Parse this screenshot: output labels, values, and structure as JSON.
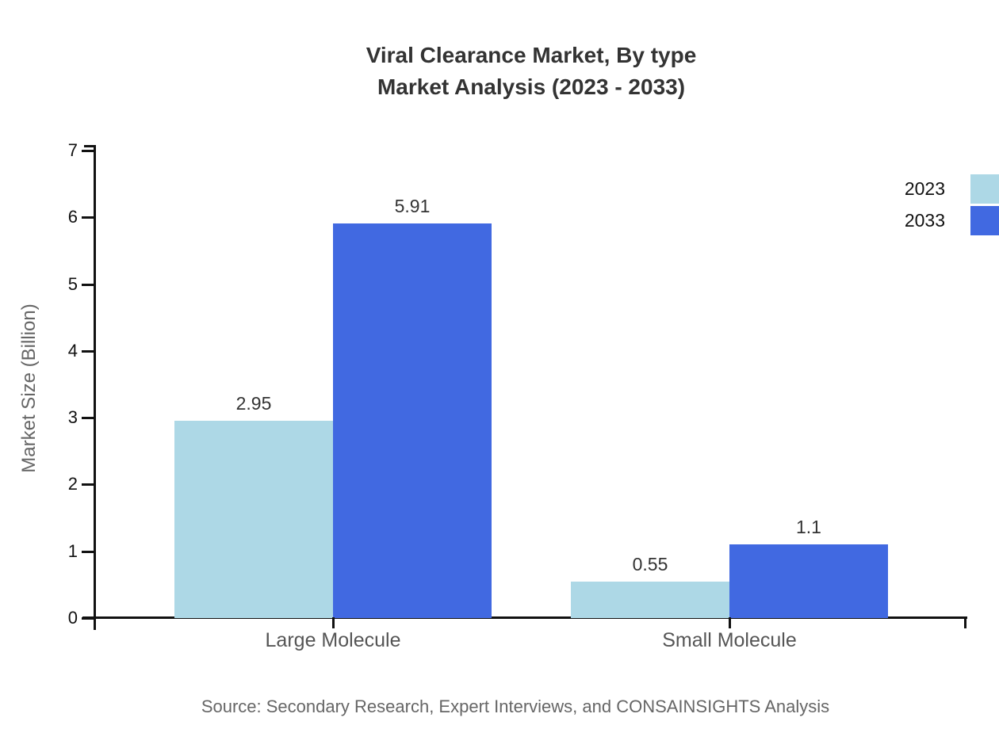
{
  "title": {
    "line1": "Viral Clearance Market, By type",
    "line2": "Market Analysis (2023 - 2033)"
  },
  "source": "Source: Secondary Research, Expert Interviews, and CONSAINSIGHTS Analysis",
  "chart_data": {
    "type": "bar",
    "title": "Viral Clearance Market, By type Market Analysis (2023 - 2033)",
    "categories": [
      "Large Molecule",
      "Small Molecule"
    ],
    "series": [
      {
        "name": "2023",
        "color": "#ADD8E6",
        "values": [
          2.95,
          0.55
        ],
        "labels": [
          "2.95",
          "0.55"
        ]
      },
      {
        "name": "2033",
        "color": "#4169E1",
        "values": [
          5.91,
          1.1
        ],
        "labels": [
          "5.91",
          "1.1"
        ]
      }
    ],
    "ylabel": "Market Size (Billion)",
    "xlabel": "",
    "ylim": [
      0,
      7
    ],
    "yticks": [
      0,
      1,
      2,
      3,
      4,
      5,
      6,
      7
    ],
    "grid": false,
    "legend_position": "top-right-outside"
  }
}
